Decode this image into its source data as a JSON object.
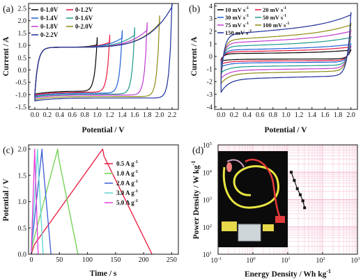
{
  "figure": {
    "panel_letters": [
      "(a)",
      "(b)",
      "(c)",
      "(d)"
    ]
  },
  "chart_data": [
    {
      "panel": "(a)",
      "type": "line",
      "xlabel": "Potential / V",
      "ylabel": "Current / A",
      "xlim": [
        -0.1,
        2.3
      ],
      "ylim": [
        -1.6,
        2.7
      ],
      "xticks": [
        "0.0",
        "0.2",
        "0.4",
        "0.6",
        "0.8",
        "1.0",
        "1.2",
        "1.4",
        "1.6",
        "1.8",
        "2.0",
        "2.2"
      ],
      "yticks": [
        "-1.5",
        "-1.0",
        "-0.5",
        "0.0",
        "0.5",
        "1.0",
        "1.5",
        "2.0",
        "2.5"
      ],
      "grid": false,
      "legend_position": "top-left",
      "series": [
        {
          "name": "0-1.0V",
          "color": "#000000",
          "vmax": 1.0,
          "i_top_end": 1.02,
          "i_bottom": -0.86
        },
        {
          "name": "0-1.2V",
          "color": "#e8163a",
          "vmax": 1.2,
          "i_top_end": 1.12,
          "i_bottom": -0.9
        },
        {
          "name": "0-1.4V",
          "color": "#1f5fd6",
          "vmax": 1.4,
          "i_top_end": 1.3,
          "i_bottom": -0.94
        },
        {
          "name": "0-1.6V",
          "color": "#1a9a8a",
          "vmax": 1.6,
          "i_top_end": 1.42,
          "i_bottom": -0.98
        },
        {
          "name": "0-1.8V",
          "color": "#c13bd0",
          "vmax": 1.8,
          "i_top_end": 1.62,
          "i_bottom": -1.02
        },
        {
          "name": "0-2.0V",
          "color": "#8c8a12",
          "vmax": 2.0,
          "i_top_end": 1.9,
          "i_bottom": -1.08
        },
        {
          "name": "0-2.2V",
          "color": "#1d2e9a",
          "vmax": 2.2,
          "i_top_end": 2.58,
          "i_bottom": -1.14
        }
      ]
    },
    {
      "panel": "(b)",
      "type": "line",
      "xlabel": "Potential / V",
      "ylabel": "Current / A",
      "xlim": [
        -0.1,
        2.1
      ],
      "ylim": [
        -4.2,
        4.2
      ],
      "xticks": [
        "0.0",
        "0.2",
        "0.4",
        "0.6",
        "0.8",
        "1.0",
        "1.2",
        "1.4",
        "1.6",
        "1.8",
        "2.0"
      ],
      "yticks": [
        "-4",
        "-3",
        "-2",
        "-1",
        "0",
        "1",
        "2",
        "3",
        "4"
      ],
      "grid": false,
      "legend_position": "top-left",
      "legend_unit": "mV s",
      "legend_superscript": "-1",
      "series": [
        {
          "name": "10",
          "color": "#000000",
          "i_mid": 0.22,
          "i_end": 0.5
        },
        {
          "name": "20",
          "color": "#e8163a",
          "i_mid": 0.36,
          "i_end": 0.75
        },
        {
          "name": "30",
          "color": "#1f5fd6",
          "i_mid": 0.5,
          "i_end": 0.95
        },
        {
          "name": "50",
          "color": "#1a9a8a",
          "i_mid": 0.78,
          "i_end": 1.5
        },
        {
          "name": "75",
          "color": "#c13bd0",
          "i_mid": 1.05,
          "i_end": 2.0
        },
        {
          "name": "100",
          "color": "#8c8a12",
          "i_mid": 1.3,
          "i_end": 2.5
        },
        {
          "name": "150",
          "color": "#1d2e9a",
          "i_mid": 1.72,
          "i_end": 3.3
        }
      ]
    },
    {
      "panel": "(c)",
      "type": "line",
      "xlabel": "Time / s",
      "ylabel": "Potential / V",
      "xlim": [
        -5,
        262
      ],
      "ylim": [
        0.0,
        2.08
      ],
      "xticks": [
        "0",
        "50",
        "100",
        "150",
        "200",
        "250"
      ],
      "yticks": [
        "0.0",
        "0.5",
        "1.0",
        "1.5",
        "2.0"
      ],
      "grid": false,
      "legend_position": "right",
      "legend_unit": "A g",
      "legend_superscript": "-1",
      "series": [
        {
          "name": "0.5",
          "color": "#e8163a",
          "t_peak": 127,
          "t_end": 215
        },
        {
          "name": "1.0",
          "color": "#6bd14d",
          "t_peak": 47,
          "t_end": 83
        },
        {
          "name": "2.0",
          "color": "#3b5bd6",
          "t_peak": 19,
          "t_end": 35
        },
        {
          "name": "3.0",
          "color": "#5ad6d2",
          "t_peak": 11,
          "t_end": 21
        },
        {
          "name": "5.0",
          "color": "#e23ad8",
          "t_peak": 6,
          "t_end": 12
        }
      ]
    },
    {
      "panel": "(d)",
      "type": "scatter",
      "xlabel": "Energy Density / Wh kg",
      "ylabel": "Power Density / W kg",
      "label_superscript": "-1",
      "xscale": "log",
      "yscale": "log",
      "xlim_exp": [
        -1,
        3
      ],
      "ylim_exp": [
        1,
        5
      ],
      "tick_exponents": [
        -1,
        0,
        1,
        2,
        3
      ],
      "y_tick_exponents": [
        1,
        2,
        3,
        4,
        5
      ],
      "tick_base": "10",
      "grid": true,
      "grid_color": "#f2b6cf",
      "points": [
        {
          "x": 12.6,
          "y": 10000
        },
        {
          "x": 15.4,
          "y": 5000
        },
        {
          "x": 18.8,
          "y": 2500
        },
        {
          "x": 22.9,
          "y": 1500
        },
        {
          "x": 27.2,
          "y": 900
        },
        {
          "x": 30.5,
          "y": 500
        }
      ]
    }
  ]
}
